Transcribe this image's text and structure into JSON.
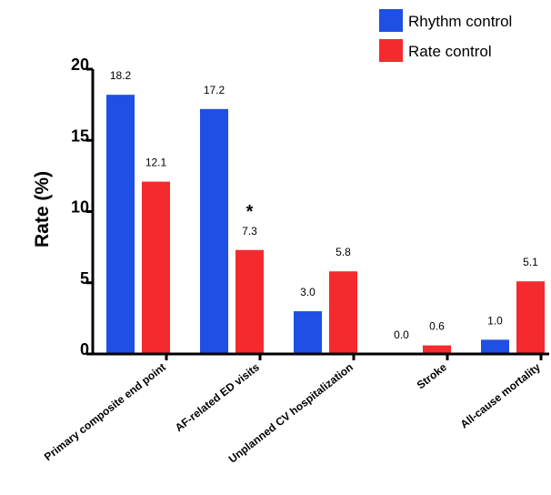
{
  "chart_data": {
    "type": "bar",
    "ylabel": "Rate (%)",
    "ylim": [
      0,
      20
    ],
    "yticks": [
      "0",
      "5",
      "10",
      "15",
      "20"
    ],
    "categories": [
      "Primary composite end point",
      "AF-related ED visits",
      "Unplanned CV hospitalization",
      "Stroke",
      "All-cause mortality"
    ],
    "series": [
      {
        "name": "Rhythm control",
        "color": "#1f4fe3",
        "values": [
          18.2,
          17.2,
          3.0,
          0.0,
          1.0
        ],
        "labels": [
          "18.2",
          "17.2",
          "3.0",
          "0.0",
          "1.0"
        ]
      },
      {
        "name": "Rate control",
        "color": "#f52a2f",
        "values": [
          12.1,
          7.3,
          5.8,
          0.6,
          5.1
        ],
        "labels": [
          "12.1",
          "7.3",
          "5.8",
          "0.6",
          "5.1"
        ]
      }
    ],
    "annotations": [
      {
        "text": "*",
        "category": "AF-related ED visits"
      }
    ],
    "legend": "top-right"
  }
}
